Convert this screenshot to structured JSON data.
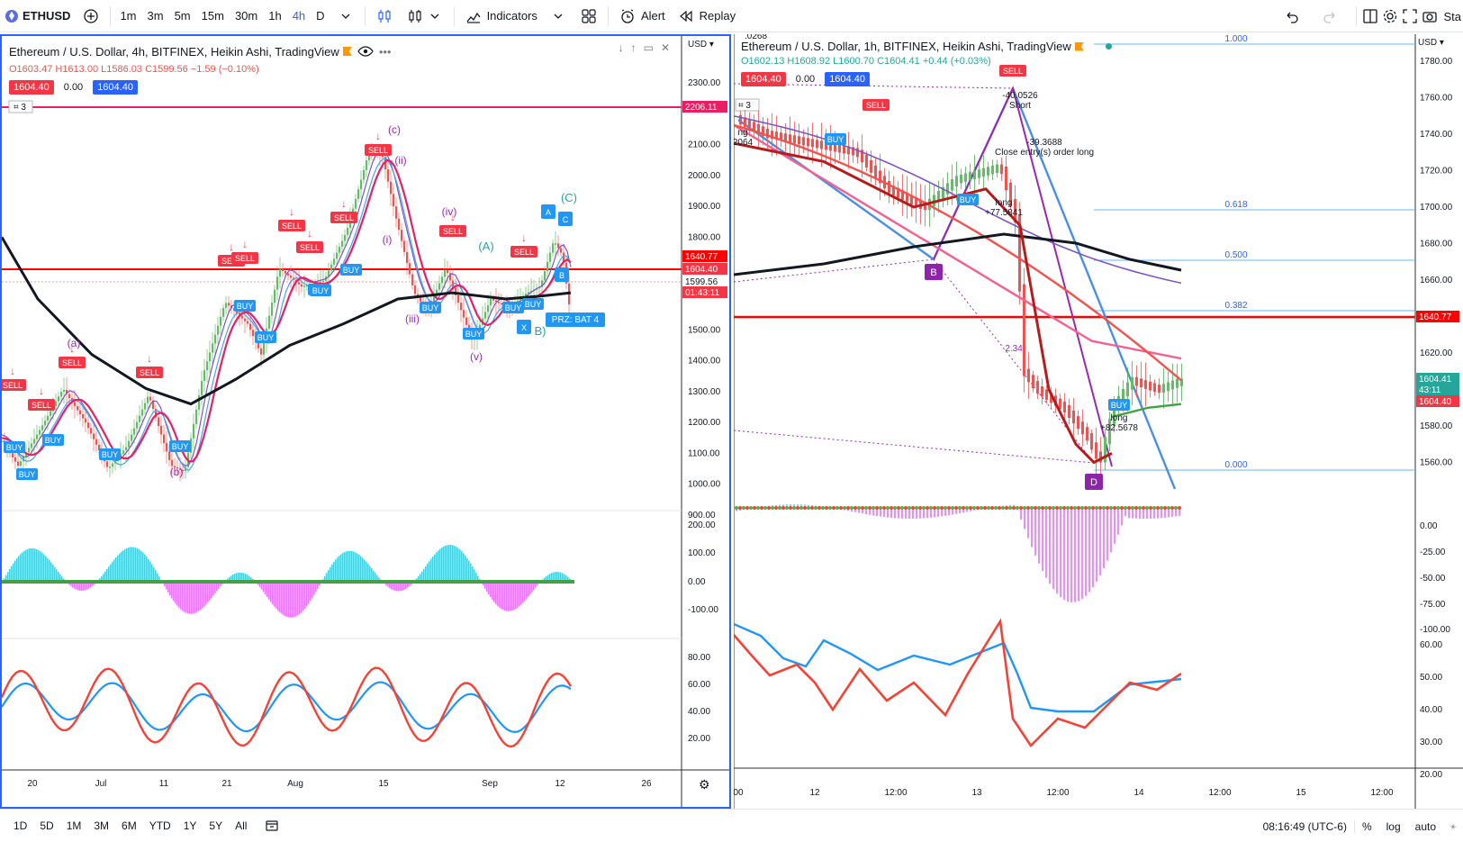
{
  "toolbar": {
    "symbol": "ETHUSD",
    "intervals": [
      "1m",
      "3m",
      "5m",
      "15m",
      "30m",
      "1h",
      "4h",
      "D"
    ],
    "active_interval": "4h",
    "indicators_label": "Indicators",
    "alert_label": "Alert",
    "replay_label": "Replay",
    "right_truncated": "Sta"
  },
  "left_chart": {
    "title": "Ethereum / U.S. Dollar, 4h, BITFINEX, Heikin Ashi, TradingView",
    "ohlc": "O1603.47 H1613.00 L1586.03 C1599.56 −1.59 (−0.10%)",
    "sell_price": "1604.40",
    "spread": "0.00",
    "buy_price": "1604.40",
    "currency": "USD",
    "count_badge": "3",
    "price_axis": [
      "2300.00",
      "2100.00",
      "2000.00",
      "1900.00",
      "1800.00",
      "1500.00",
      "1400.00",
      "1300.00",
      "1200.00",
      "1100.00",
      "1000.00",
      "900.00"
    ],
    "axis_tags": {
      "hline": "2206.11",
      "level": "1640.77",
      "bid": "1604.40",
      "last": "1599.56",
      "timer": "01:43:11"
    },
    "osc_axis": [
      "200.00",
      "100.00",
      "0.00",
      "-100.00"
    ],
    "rsi_axis": [
      "80.00",
      "60.00",
      "40.00",
      "20.00"
    ],
    "time_axis": [
      "20",
      "Jul",
      "11",
      "21",
      "Aug",
      "15",
      "Sep",
      "12",
      "26"
    ],
    "waves": [
      "(a)",
      "(b)",
      "(c)",
      "(i)",
      "(ii)",
      "(iii)",
      "(iv)",
      "(v)"
    ],
    "harmonic": [
      "A",
      "C",
      "B",
      "X",
      "(A)",
      "(C)",
      "B)"
    ],
    "prz_label": "PRZ: BAT 4",
    "signals": {
      "sell": "SELL",
      "buy": "BUY"
    }
  },
  "right_chart": {
    "title": "Ethereum / U.S. Dollar, 1h, BITFINEX, Heikin Ashi, TradingView",
    "ohlc": "O1602.13 H1608.92 L1600.70 C1604.41 +0.44 (+0.03%)",
    "sell_price": "1604.40",
    "spread": "0.00",
    "buy_price": "1604.40",
    "currency": "USD",
    "count_badge": "3",
    "price_axis": [
      "1780.00",
      "1760.00",
      "1740.00",
      "1720.00",
      "1700.00",
      "1680.00",
      "1660.00",
      "1620.00",
      "1580.00",
      "1560.00"
    ],
    "axis_tags": {
      "level": "1640.77",
      "last": "1604.41",
      "timer": "43:11",
      "bid": "1604.40"
    },
    "osc_axis": [
      "0.00",
      "-25.00",
      "-50.00",
      "-75.00",
      "-100.00"
    ],
    "rsi_axis": [
      "60.00",
      "50.00",
      "40.00",
      "30.00",
      "20.00"
    ],
    "time_axis": [
      "00",
      "12",
      "12:00",
      "13",
      "12:00",
      "14",
      "12:00",
      "15",
      "12:00"
    ],
    "fib_levels": [
      "1.000",
      "0.618",
      "0.500",
      "0.382",
      "0.000"
    ],
    "points": [
      "B",
      "D"
    ],
    "annotations": {
      "short": "-40.0526\nShort",
      "close_entry": "-39.3688\nClose entry(s) order long",
      "long1": "long\n+77.5841",
      "long2": "long\n+82.5678",
      "ratio": "2.34",
      "top_left": ".0268",
      "left_cut": "ng\n2064"
    },
    "signals": {
      "sell": "SELL",
      "buy": "BUY"
    }
  },
  "bottombar": {
    "ranges": [
      "1D",
      "5D",
      "1M",
      "3M",
      "6M",
      "YTD",
      "1Y",
      "5Y",
      "All"
    ],
    "clock": "08:16:49 (UTC-6)",
    "percent": "%",
    "log": "log",
    "auto": "auto"
  },
  "colors": {
    "accent": "#2962ff",
    "sell": "#f23645",
    "buy": "#2196f3",
    "up": "#26a69a",
    "down": "#ef5350",
    "hline": "#e91e63",
    "level": "#ff0000",
    "wave": "#9c27b0"
  }
}
